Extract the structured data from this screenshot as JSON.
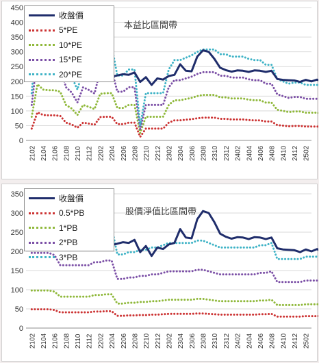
{
  "chart_data": [
    {
      "type": "line",
      "title": "本益比區間帶",
      "x_tick_labels": [
        "2102",
        "2104",
        "2106",
        "2108",
        "2110",
        "2112",
        "2202",
        "2204",
        "2206",
        "2208",
        "2210",
        "2212",
        "2302",
        "2304",
        "2306",
        "2308",
        "2310",
        "2312",
        "2402",
        "2404",
        "2406",
        "2408",
        "2410",
        "2412",
        "2502"
      ],
      "x_range": [
        "2101",
        "2503"
      ],
      "ylim": [
        0,
        450
      ],
      "y_ticks": [
        0,
        50,
        100,
        150,
        200,
        250,
        300,
        350,
        400,
        450
      ],
      "grid": "horizontal",
      "legend_position": "top-left",
      "series": [
        {
          "name": "收盤價",
          "color": "#1f2d6b",
          "style": "solid",
          "values": [
            235,
            248,
            241,
            240,
            245,
            248,
            240,
            243,
            238,
            230,
            226,
            220,
            215,
            222,
            216,
            220,
            224,
            222,
            230,
            198,
            214,
            188,
            210,
            206,
            218,
            222,
            258,
            236,
            234,
            284,
            305,
            300,
            276,
            246,
            238,
            233,
            237,
            236,
            232,
            237,
            236,
            232,
            236,
            208,
            205,
            204,
            203,
            198,
            205,
            200,
            206,
            196,
            196,
            198
          ]
        },
        {
          "name": "5*PE",
          "color": "#cc3333",
          "style": "dotted",
          "values": [
            40,
            95,
            86,
            85,
            85,
            83,
            60,
            54,
            43,
            60,
            57,
            53,
            79,
            80,
            80,
            55,
            55,
            60,
            60,
            12,
            40,
            40,
            40,
            40,
            60,
            68,
            68,
            70,
            72,
            75,
            77,
            77,
            77,
            73,
            73,
            71,
            71,
            71,
            69,
            68,
            68,
            64,
            64,
            52,
            50,
            48,
            49,
            49,
            47,
            47,
            47,
            45,
            45,
            44
          ]
        },
        {
          "name": "10*PE",
          "color": "#8fb83a",
          "style": "dotted",
          "values": [
            80,
            190,
            172,
            170,
            170,
            165,
            120,
            108,
            86,
            120,
            114,
            106,
            158,
            160,
            160,
            110,
            110,
            120,
            120,
            25,
            80,
            80,
            80,
            80,
            120,
            136,
            136,
            140,
            144,
            150,
            154,
            154,
            154,
            146,
            146,
            142,
            142,
            142,
            138,
            136,
            136,
            128,
            128,
            104,
            100,
            96,
            98,
            98,
            94,
            94,
            94,
            90,
            90,
            88
          ]
        },
        {
          "name": "15*PE",
          "color": "#7b4fa6",
          "style": "dotted",
          "values": [
            120,
            285,
            258,
            255,
            255,
            248,
            180,
            162,
            129,
            180,
            171,
            159,
            237,
            240,
            240,
            165,
            165,
            180,
            180,
            37,
            120,
            120,
            120,
            120,
            180,
            204,
            204,
            210,
            216,
            225,
            231,
            231,
            231,
            219,
            219,
            213,
            213,
            213,
            207,
            204,
            204,
            192,
            192,
            156,
            150,
            144,
            147,
            147,
            141,
            141,
            141,
            135,
            135,
            132
          ]
        },
        {
          "name": "20*PE",
          "color": "#3fb3c6",
          "style": "dotted",
          "values": [
            160,
            380,
            344,
            340,
            340,
            330,
            240,
            216,
            172,
            240,
            228,
            212,
            316,
            320,
            320,
            220,
            220,
            240,
            240,
            49,
            160,
            160,
            160,
            160,
            240,
            272,
            272,
            280,
            288,
            300,
            308,
            308,
            308,
            292,
            292,
            284,
            284,
            284,
            276,
            272,
            272,
            256,
            256,
            208,
            200,
            192,
            196,
            196,
            188,
            188,
            188,
            180,
            180,
            176
          ]
        }
      ]
    },
    {
      "type": "line",
      "title": "股價淨值比區間帶",
      "x_tick_labels": [
        "2102",
        "2104",
        "2106",
        "2108",
        "2110",
        "2112",
        "2202",
        "2204",
        "2206",
        "2208",
        "2210",
        "2212",
        "2302",
        "2304",
        "2306",
        "2308",
        "2310",
        "2312",
        "2402",
        "2404",
        "2406",
        "2408",
        "2410",
        "2412",
        "2502"
      ],
      "x_range": [
        "2101",
        "2503"
      ],
      "ylim": [
        0,
        350
      ],
      "y_ticks": [
        0,
        50,
        100,
        150,
        200,
        250,
        300,
        350
      ],
      "grid": "horizontal",
      "legend_position": "top-left",
      "series": [
        {
          "name": "收盤價",
          "color": "#1f2d6b",
          "style": "solid",
          "values": [
            235,
            248,
            241,
            240,
            245,
            248,
            240,
            243,
            238,
            230,
            226,
            220,
            215,
            222,
            216,
            220,
            224,
            222,
            230,
            198,
            214,
            188,
            210,
            206,
            218,
            222,
            258,
            236,
            234,
            284,
            305,
            300,
            276,
            246,
            238,
            233,
            237,
            236,
            232,
            237,
            236,
            232,
            236,
            208,
            205,
            204,
            203,
            198,
            205,
            200,
            206,
            196,
            196,
            198
          ]
        },
        {
          "name": "0.5*PB",
          "color": "#cc3333",
          "style": "dotted",
          "values": [
            49,
            49,
            49,
            49,
            47,
            41,
            41,
            41,
            41,
            41,
            41,
            43,
            43,
            44,
            44,
            32,
            32,
            33,
            33,
            34,
            34,
            35,
            35,
            36,
            37,
            37,
            37,
            37,
            37,
            38,
            38,
            37,
            36,
            35,
            35,
            35,
            35,
            35,
            35,
            35,
            36,
            36,
            37,
            30,
            30,
            30,
            30,
            30,
            31,
            31,
            31,
            32,
            32,
            32
          ]
        },
        {
          "name": "1*PB",
          "color": "#8fb83a",
          "style": "dotted",
          "values": [
            98,
            98,
            98,
            98,
            95,
            82,
            82,
            82,
            82,
            82,
            82,
            86,
            86,
            88,
            88,
            64,
            64,
            66,
            66,
            68,
            68,
            70,
            70,
            72,
            74,
            74,
            74,
            74,
            74,
            76,
            76,
            74,
            72,
            70,
            70,
            70,
            70,
            70,
            70,
            70,
            72,
            72,
            74,
            60,
            60,
            60,
            60,
            60,
            62,
            62,
            62,
            64,
            64,
            64
          ]
        },
        {
          "name": "2*PB",
          "color": "#7b4fa6",
          "style": "dotted",
          "values": [
            196,
            196,
            196,
            196,
            190,
            164,
            164,
            164,
            164,
            164,
            164,
            172,
            172,
            176,
            176,
            128,
            128,
            132,
            132,
            136,
            136,
            140,
            140,
            144,
            148,
            148,
            148,
            148,
            148,
            152,
            152,
            148,
            144,
            140,
            140,
            140,
            140,
            140,
            140,
            140,
            144,
            144,
            148,
            120,
            120,
            120,
            120,
            120,
            124,
            124,
            124,
            128,
            128,
            128
          ]
        },
        {
          "name": "3*PB",
          "color": "#3fb3c6",
          "style": "dotted",
          "values": [
            294,
            294,
            294,
            294,
            285,
            246,
            246,
            246,
            246,
            246,
            246,
            258,
            258,
            264,
            264,
            192,
            192,
            198,
            198,
            204,
            204,
            210,
            210,
            216,
            222,
            222,
            222,
            222,
            222,
            228,
            228,
            222,
            216,
            210,
            210,
            210,
            210,
            210,
            210,
            210,
            216,
            216,
            222,
            180,
            180,
            180,
            180,
            180,
            186,
            186,
            186,
            192,
            192,
            192
          ]
        }
      ]
    }
  ]
}
